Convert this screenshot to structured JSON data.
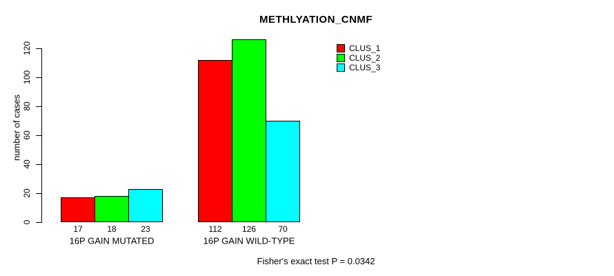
{
  "chart_data": {
    "type": "bar",
    "title": "METHLYATION_CNMF",
    "ylabel": "number of cases",
    "xlabel": "",
    "categories": [
      "16P GAIN MUTATED",
      "16P GAIN WILD-TYPE"
    ],
    "series": [
      {
        "name": "CLUS_1",
        "color": "#ff0000",
        "values": [
          17,
          112
        ]
      },
      {
        "name": "CLUS_2",
        "color": "#00ff00",
        "values": [
          18,
          126
        ]
      },
      {
        "name": "CLUS_3",
        "color": "#00ffff",
        "values": [
          23,
          70
        ]
      }
    ],
    "yticks": [
      0,
      20,
      40,
      60,
      80,
      100,
      120
    ],
    "ylim": [
      0,
      130
    ],
    "grid": false,
    "bar_value_labels": true,
    "legend_position": "top-right",
    "annotation": "Fisher's exact test P = 0.0342"
  }
}
